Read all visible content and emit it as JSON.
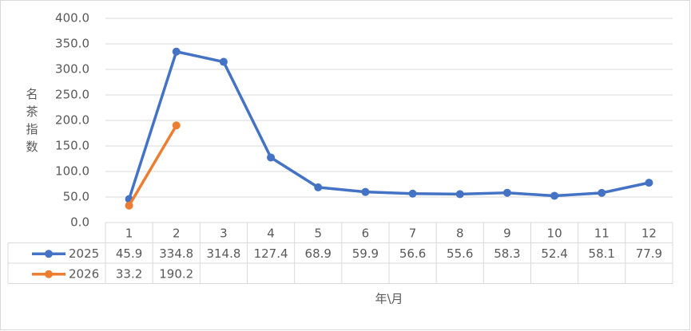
{
  "chart_data": {
    "type": "line",
    "y_label": "名茶指数",
    "x_label": "年\\月",
    "categories": [
      "1",
      "2",
      "3",
      "4",
      "5",
      "6",
      "7",
      "8",
      "9",
      "10",
      "11",
      "12"
    ],
    "series": [
      {
        "name": "2025",
        "color": "#4472c4",
        "values": [
          45.9,
          334.8,
          314.8,
          127.4,
          68.9,
          59.9,
          56.6,
          55.6,
          58.3,
          52.4,
          58.1,
          77.9
        ]
      },
      {
        "name": "2026",
        "color": "#ed7d31",
        "values": [
          33.2,
          190.2,
          null,
          null,
          null,
          null,
          null,
          null,
          null,
          null,
          null,
          null
        ]
      }
    ],
    "ylim": [
      0,
      400
    ],
    "yticks": [
      {
        "value": 0,
        "label": "0.0"
      },
      {
        "value": 50,
        "label": "50.0"
      },
      {
        "value": 100,
        "label": "100.0"
      },
      {
        "value": 150,
        "label": "150.0"
      },
      {
        "value": 200,
        "label": "200.0"
      },
      {
        "value": 250,
        "label": "250.0"
      },
      {
        "value": 300,
        "label": "300.0"
      },
      {
        "value": 350,
        "label": "350.0"
      },
      {
        "value": 400,
        "label": "400.0"
      }
    ],
    "grid": true
  }
}
